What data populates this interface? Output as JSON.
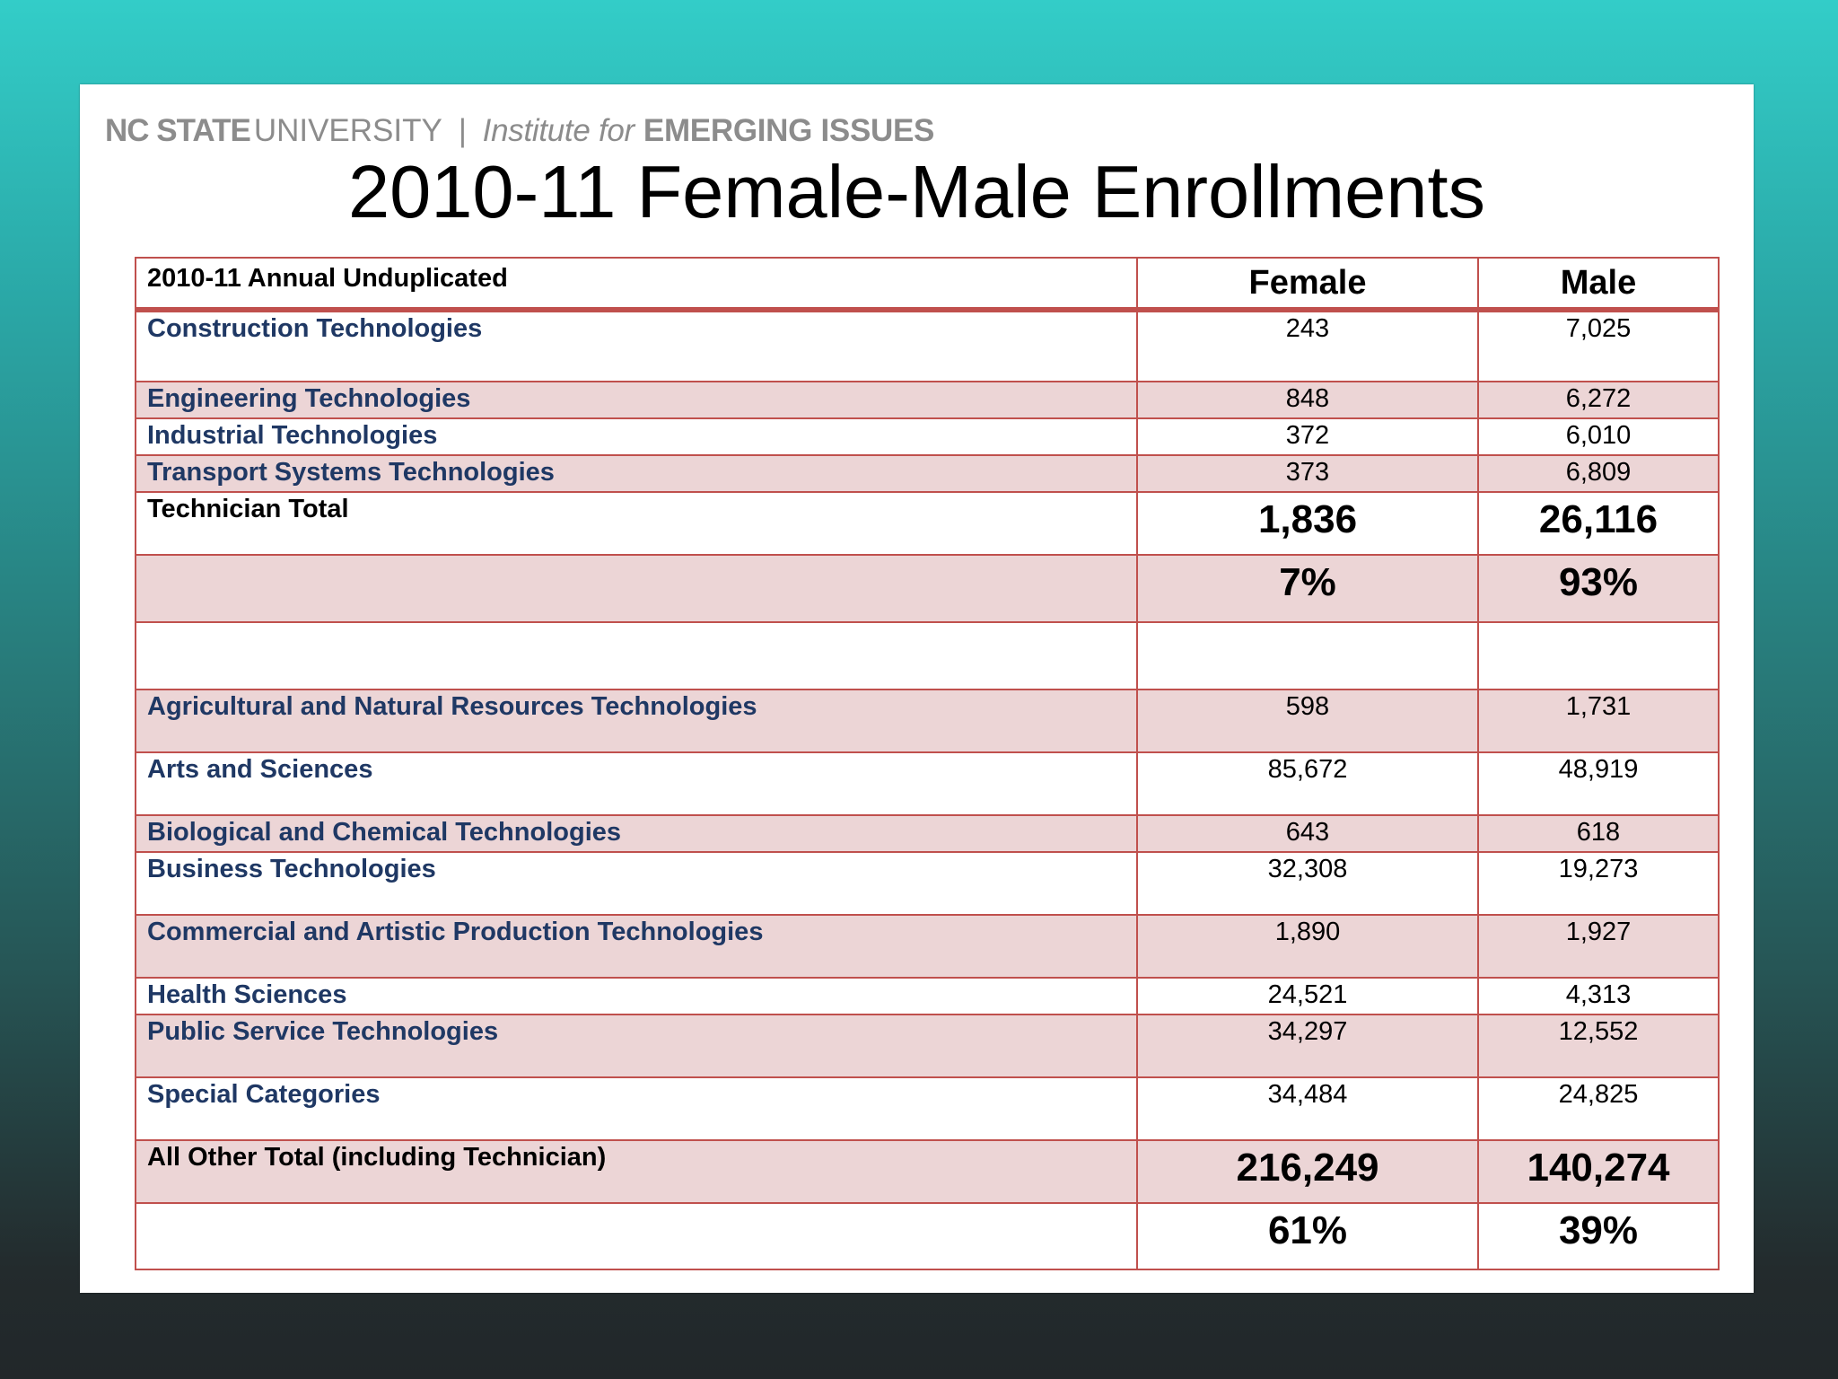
{
  "logo": {
    "nc_state": "NC STATE",
    "university": "UNIVERSITY",
    "separator": "|",
    "institute_for": "Institute for",
    "emerging_issues": "EMERGING ISSUES"
  },
  "title": "2010-11 Female-Male Enrollments",
  "table": {
    "header": {
      "label": "2010-11 Annual Unduplicated",
      "female": "Female",
      "male": "Male"
    },
    "technician_rows": [
      {
        "category": "Construction Technologies",
        "female": "243",
        "male": "7,025"
      },
      {
        "category": "Engineering Technologies",
        "female": "848",
        "male": "6,272"
      },
      {
        "category": "Industrial Technologies",
        "female": "372",
        "male": "6,010"
      },
      {
        "category": "Transport Systems Technologies",
        "female": "373",
        "male": "6,809"
      }
    ],
    "technician_total": {
      "label": "Technician Total",
      "female": "1,836",
      "male": "26,116"
    },
    "technician_percent": {
      "female": "7%",
      "male": "93%"
    },
    "other_rows": [
      {
        "category": "Agricultural and Natural Resources Technologies",
        "female": "598",
        "male": "1,731"
      },
      {
        "category": "Arts and Sciences",
        "female": "85,672",
        "male": "48,919"
      },
      {
        "category": "Biological and Chemical Technologies",
        "female": "643",
        "male": "618"
      },
      {
        "category": "Business Technologies",
        "female": "32,308",
        "male": "19,273"
      },
      {
        "category": "Commercial and Artistic Production Technologies",
        "female": "1,890",
        "male": "1,927"
      },
      {
        "category": "Health Sciences",
        "female": "24,521",
        "male": "4,313"
      },
      {
        "category": "Public Service Technologies",
        "female": "34,297",
        "male": "12,552"
      },
      {
        "category": "Special Categories",
        "female": "34,484",
        "male": "24,825"
      }
    ],
    "all_total": {
      "label": "All Other Total (including Technician)",
      "female": "216,249",
      "male": "140,274"
    },
    "all_percent": {
      "female": "61%",
      "male": "39%"
    }
  }
}
